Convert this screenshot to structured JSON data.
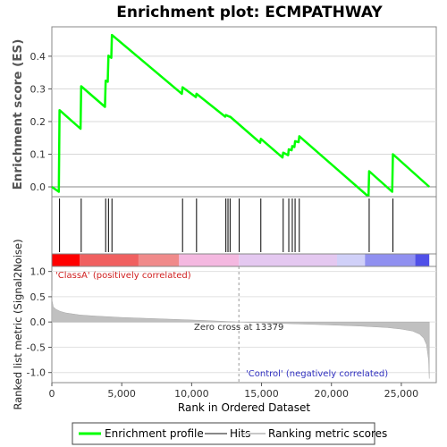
{
  "chart_data": [
    {
      "type": "line",
      "title": "Enrichment plot: ECMPATHWAY",
      "ylabel": "Enrichment score (ES)",
      "ylim": [
        -0.03,
        0.49
      ],
      "xlim": [
        0,
        27500
      ],
      "y_ticks": [
        "0.0",
        "0.1",
        "0.2",
        "0.3",
        "0.4"
      ],
      "y_tick_values": [
        0.0,
        0.1,
        0.2,
        0.3,
        0.4
      ],
      "grid": true,
      "series": [
        {
          "name": "Enrichment profile",
          "color": "#00ff00",
          "x": [
            0,
            500,
            550,
            2050,
            2100,
            3800,
            3850,
            4000,
            4050,
            4250,
            4300,
            9300,
            9350,
            10300,
            10350,
            12400,
            12450,
            12700,
            12750,
            14900,
            14950,
            16500,
            16550,
            16900,
            16950,
            17150,
            17200,
            17350,
            17400,
            17650,
            17700,
            22650,
            22700,
            24350,
            24400,
            27000
          ],
          "y": [
            0.0,
            -0.015,
            0.235,
            0.178,
            0.308,
            0.245,
            0.325,
            0.322,
            0.402,
            0.395,
            0.465,
            0.285,
            0.305,
            0.275,
            0.285,
            0.215,
            0.22,
            0.215,
            0.215,
            0.135,
            0.147,
            0.09,
            0.105,
            0.097,
            0.115,
            0.112,
            0.125,
            0.122,
            0.14,
            0.137,
            0.155,
            -0.03,
            0.048,
            -0.015,
            0.1,
            0.0
          ]
        }
      ],
      "hits_label": "Hits",
      "hit_positions": [
        550,
        2100,
        3850,
        4050,
        4300,
        9350,
        10350,
        12450,
        12600,
        12750,
        13400,
        14950,
        16550,
        16950,
        17200,
        17400,
        17700,
        22700,
        24400
      ]
    },
    {
      "type": "area",
      "ylabel": "Ranked list metric (Signal2Noise)",
      "xlabel": "Rank in Ordered Dataset",
      "ylim": [
        -1.2,
        1.1
      ],
      "xlim": [
        0,
        27500
      ],
      "y_ticks": [
        "-1.0",
        "-0.5",
        "0.0",
        "0.5",
        "1.0"
      ],
      "y_tick_values": [
        -1.0,
        -0.5,
        0.0,
        0.5,
        1.0
      ],
      "x_ticks": [
        "0",
        "5,000",
        "10,000",
        "15,000",
        "20,000",
        "25,000"
      ],
      "x_tick_values": [
        0,
        5000,
        10000,
        15000,
        20000,
        25000
      ],
      "series": [
        {
          "name": "Ranking metric scores",
          "color": "#c0c0c0",
          "x": [
            0,
            20,
            100,
            300,
            600,
            1000,
            2000,
            3000,
            5000,
            8000,
            11000,
            13379,
            16000,
            19000,
            22000,
            24000,
            25000,
            25800,
            26300,
            26600,
            26800,
            26950,
            27000
          ],
          "y": [
            0.62,
            0.42,
            0.3,
            0.25,
            0.21,
            0.18,
            0.14,
            0.12,
            0.09,
            0.06,
            0.03,
            0.0,
            -0.025,
            -0.05,
            -0.08,
            -0.11,
            -0.14,
            -0.18,
            -0.24,
            -0.32,
            -0.45,
            -0.75,
            -1.12
          ]
        }
      ],
      "zero_cross_label": "Zero cross at 13379",
      "zero_cross_x": 13379,
      "class_a_label": "'ClassA' (positively correlated)",
      "control_label": "'Control' (negatively correlated)",
      "band_colors": [
        "#ff0000",
        "#f06060",
        "#f08a8a",
        "#f4b8e0",
        "#e4c8f0",
        "#d0d0f8",
        "#9090f0",
        "#5050e8",
        "#1010d0"
      ],
      "band_breaks": [
        0,
        2000,
        6200,
        9100,
        13379,
        20400,
        22400,
        26000,
        27000
      ]
    }
  ],
  "legend": {
    "items": [
      {
        "label": "Enrichment profile",
        "color": "#00ff00"
      },
      {
        "label": "Hits",
        "color": "#000000"
      },
      {
        "label": "Ranking metric scores",
        "color": "#c8c8c8"
      }
    ]
  }
}
